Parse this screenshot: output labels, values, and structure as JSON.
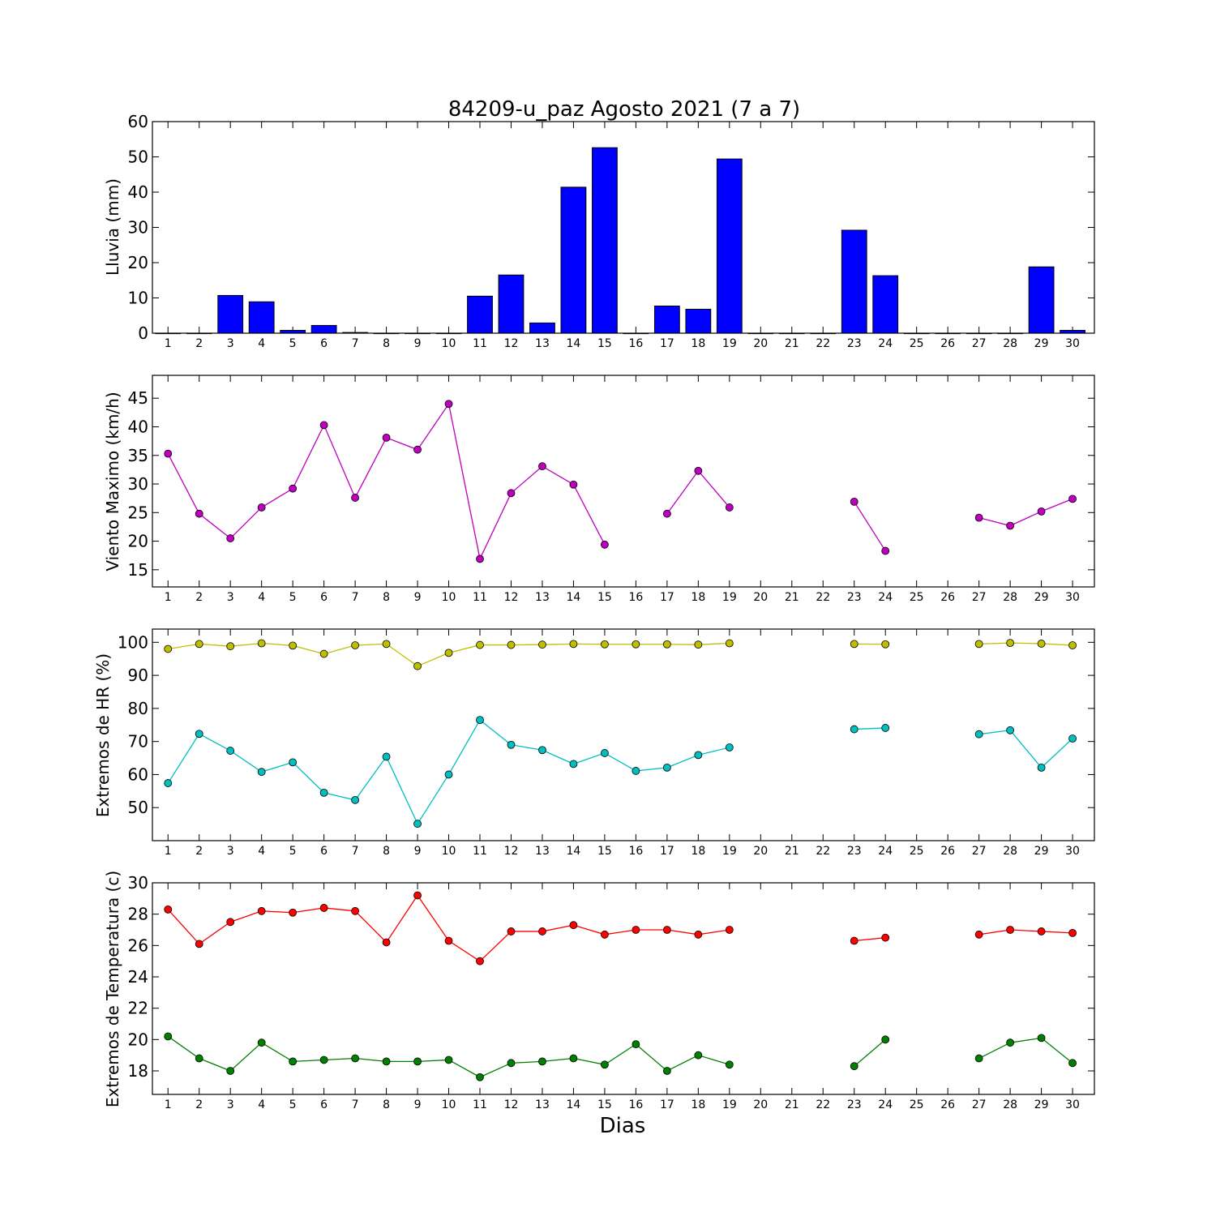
{
  "chart_data": [
    {
      "type": "bar",
      "title": "84209-u_paz Agosto 2021  (7 a 7)",
      "ylabel": "Lluvia (mm)",
      "xlabel": "",
      "ylim": [
        0,
        60
      ],
      "yticks": [
        0,
        10,
        20,
        30,
        40,
        50,
        60
      ],
      "categories": [
        1,
        2,
        3,
        4,
        5,
        6,
        7,
        8,
        9,
        10,
        11,
        12,
        13,
        14,
        15,
        16,
        17,
        18,
        19,
        20,
        21,
        22,
        23,
        24,
        25,
        26,
        27,
        28,
        29,
        30
      ],
      "values": [
        0,
        0,
        10.7,
        8.9,
        0.8,
        2.2,
        0.2,
        0,
        0,
        0,
        10.5,
        16.5,
        2.9,
        41.4,
        52.6,
        0,
        7.7,
        6.8,
        49.4,
        0,
        0,
        0,
        29.2,
        16.3,
        0,
        0,
        0,
        0,
        18.8,
        0.8
      ],
      "color": "#0000ff"
    },
    {
      "type": "line",
      "ylabel": "Viento Maximo (km/h)",
      "ylim": [
        12,
        49
      ],
      "yticks": [
        15,
        20,
        25,
        30,
        35,
        40,
        45
      ],
      "x": [
        1,
        2,
        3,
        4,
        5,
        6,
        7,
        8,
        9,
        10,
        11,
        12,
        13,
        14,
        15,
        16,
        17,
        18,
        19,
        20,
        21,
        22,
        23,
        24,
        25,
        26,
        27,
        28,
        29,
        30
      ],
      "series": [
        {
          "color": "#bf00bf",
          "values": [
            35.3,
            24.8,
            20.5,
            25.9,
            29.2,
            40.3,
            27.6,
            38.1,
            36.0,
            44.0,
            16.9,
            28.4,
            33.1,
            29.9,
            19.4,
            null,
            24.8,
            32.3,
            25.9,
            null,
            null,
            null,
            26.9,
            18.3,
            null,
            null,
            24.1,
            22.7,
            25.2,
            27.4
          ]
        }
      ]
    },
    {
      "type": "line",
      "ylabel": "Extremos de HR (%)",
      "ylim": [
        40,
        104
      ],
      "yticks": [
        50,
        60,
        70,
        80,
        90,
        100
      ],
      "x": [
        1,
        2,
        3,
        4,
        5,
        6,
        7,
        8,
        9,
        10,
        11,
        12,
        13,
        14,
        15,
        16,
        17,
        18,
        19,
        20,
        21,
        22,
        23,
        24,
        25,
        26,
        27,
        28,
        29,
        30
      ],
      "series": [
        {
          "color": "#bfbf00",
          "values": [
            98,
            99.5,
            98.8,
            99.7,
            99,
            96.5,
            99.1,
            99.5,
            92.8,
            96.8,
            99.2,
            99.2,
            99.3,
            99.5,
            99.4,
            99.4,
            99.4,
            99.3,
            99.7,
            null,
            null,
            null,
            99.5,
            99.4,
            null,
            null,
            99.5,
            99.8,
            99.6,
            99.1
          ]
        },
        {
          "color": "#00bfbf",
          "values": [
            57.4,
            72.3,
            67.2,
            60.8,
            63.7,
            54.5,
            52.3,
            65.4,
            45.1,
            60,
            76.5,
            69,
            67.4,
            63.2,
            66.5,
            61.1,
            62.1,
            65.9,
            68.2,
            null,
            null,
            null,
            73.7,
            74.1,
            null,
            null,
            72.2,
            73.4,
            62.1,
            70.9
          ]
        }
      ]
    },
    {
      "type": "line",
      "ylabel": "Extremos de Temperatura (c)",
      "xlabel": "Dias",
      "ylim": [
        16.5,
        30
      ],
      "yticks": [
        18,
        20,
        22,
        24,
        26,
        28,
        30
      ],
      "x": [
        1,
        2,
        3,
        4,
        5,
        6,
        7,
        8,
        9,
        10,
        11,
        12,
        13,
        14,
        15,
        16,
        17,
        18,
        19,
        20,
        21,
        22,
        23,
        24,
        25,
        26,
        27,
        28,
        29,
        30
      ],
      "series": [
        {
          "color": "#ff0000",
          "values": [
            28.3,
            26.1,
            27.5,
            28.2,
            28.1,
            28.4,
            28.2,
            26.2,
            29.2,
            26.3,
            25,
            26.9,
            26.9,
            27.3,
            26.7,
            27,
            27,
            26.7,
            27,
            null,
            null,
            null,
            26.3,
            26.5,
            null,
            null,
            26.7,
            27,
            26.9,
            26.8
          ]
        },
        {
          "color": "#008000",
          "values": [
            20.2,
            18.8,
            18,
            19.8,
            18.6,
            18.7,
            18.8,
            18.6,
            18.6,
            18.7,
            17.6,
            18.5,
            18.6,
            18.8,
            18.4,
            19.7,
            18,
            19,
            18.4,
            null,
            null,
            null,
            18.3,
            20,
            null,
            null,
            18.8,
            19.8,
            20.1,
            18.5
          ]
        }
      ]
    }
  ]
}
